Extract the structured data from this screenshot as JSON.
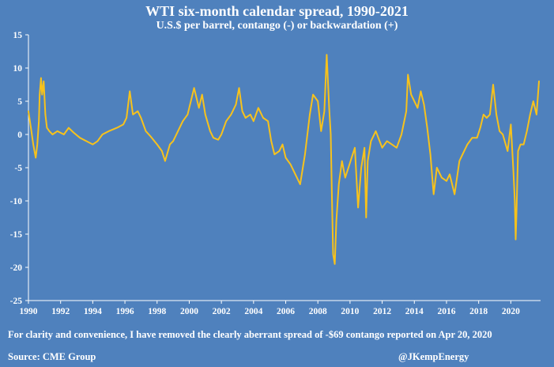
{
  "title": "WTI six-month calendar spread, 1990-2021",
  "subtitle": "U.S.$ per barrel, contango (-) or backwardation (+)",
  "note": "For clarity and convenience, I have removed the clearly aberrant spread of -$69 contango reported on Apr 20, 2020",
  "source": "Source: CME Group",
  "credit": "@JKempEnergy",
  "colors": {
    "background": "#4f81bd",
    "line": "#f7c21c",
    "text": "#ffffff"
  },
  "chart_data": {
    "type": "line",
    "title": "WTI six-month calendar spread, 1990-2021",
    "subtitle": "U.S.$ per barrel, contango (-) or backwardation (+)",
    "xlabel": "",
    "ylabel": "",
    "xlim": [
      1990,
      2021.85
    ],
    "ylim": [
      -25,
      15
    ],
    "yticks": [
      15,
      10,
      5,
      0,
      -5,
      -10,
      -15,
      -20,
      -25
    ],
    "xticks": [
      1990,
      1992,
      1994,
      1996,
      1998,
      2000,
      2002,
      2004,
      2006,
      2008,
      2010,
      2012,
      2014,
      2016,
      2018,
      2020
    ],
    "grid": false,
    "series": [
      {
        "x": [
          1990.0,
          1990.15,
          1990.3,
          1990.45,
          1990.55,
          1990.65,
          1990.7,
          1990.78,
          1990.85,
          1990.95,
          1991.05,
          1991.15,
          1991.3,
          1991.5,
          1991.8,
          1992.2,
          1992.5,
          1992.8,
          1993.2,
          1993.6,
          1994.0,
          1994.3,
          1994.6,
          1995.0,
          1995.5,
          1995.9,
          1996.1,
          1996.3,
          1996.5,
          1996.8,
          1997.0,
          1997.3,
          1997.6,
          1998.0,
          1998.3,
          1998.5,
          1998.8,
          1999.0,
          1999.3,
          1999.6,
          1999.9,
          2000.1,
          2000.3,
          2000.6,
          2000.8,
          2001.0,
          2001.3,
          2001.5,
          2001.8,
          2002.0,
          2002.3,
          2002.6,
          2002.9,
          2003.1,
          2003.3,
          2003.5,
          2003.8,
          2004.0,
          2004.3,
          2004.6,
          2004.9,
          2005.1,
          2005.3,
          2005.6,
          2005.8,
          2006.0,
          2006.3,
          2006.6,
          2006.9,
          2007.2,
          2007.5,
          2007.7,
          2008.0,
          2008.2,
          2008.4,
          2008.55,
          2008.7,
          2008.8,
          2008.88,
          2008.95,
          2009.05,
          2009.15,
          2009.3,
          2009.5,
          2009.7,
          2009.9,
          2010.1,
          2010.3,
          2010.5,
          2010.7,
          2010.9,
          2011.0,
          2011.1,
          2011.3,
          2011.6,
          2012.0,
          2012.3,
          2012.6,
          2012.9,
          2013.2,
          2013.5,
          2013.6,
          2013.8,
          2014.0,
          2014.2,
          2014.4,
          2014.6,
          2014.8,
          2015.0,
          2015.2,
          2015.4,
          2015.7,
          2016.0,
          2016.2,
          2016.5,
          2016.8,
          2017.0,
          2017.3,
          2017.6,
          2017.9,
          2018.1,
          2018.3,
          2018.5,
          2018.7,
          2018.9,
          2019.1,
          2019.3,
          2019.5,
          2019.8,
          2020.0,
          2020.15,
          2020.25,
          2020.3,
          2020.35,
          2020.45,
          2020.6,
          2020.8,
          2021.0,
          2021.2,
          2021.4,
          2021.6,
          2021.75
        ],
        "values": [
          3.5,
          1.0,
          -1.5,
          -3.5,
          -1.5,
          2.0,
          6.0,
          8.5,
          6.0,
          8.0,
          3.0,
          1.0,
          0.5,
          0.0,
          0.5,
          0.0,
          1.0,
          0.3,
          -0.5,
          -1.0,
          -1.5,
          -1.0,
          0.0,
          0.5,
          1.0,
          1.5,
          2.5,
          6.5,
          3.0,
          3.5,
          2.5,
          0.5,
          -0.3,
          -1.5,
          -2.5,
          -4.0,
          -1.5,
          -1.0,
          0.5,
          2.0,
          3.0,
          5.0,
          7.0,
          4.0,
          6.0,
          3.0,
          0.5,
          -0.5,
          -0.8,
          0.0,
          2.0,
          3.0,
          4.5,
          7.0,
          3.5,
          2.5,
          3.0,
          2.0,
          4.0,
          2.5,
          2.0,
          -1.0,
          -3.0,
          -2.5,
          -1.5,
          -3.5,
          -4.5,
          -6.0,
          -7.5,
          -3.0,
          3.0,
          6.0,
          5.0,
          0.5,
          3.5,
          12.0,
          4.0,
          0.0,
          -10.0,
          -18.0,
          -19.5,
          -13.0,
          -7.5,
          -4.0,
          -6.5,
          -5.0,
          -3.5,
          -2.0,
          -11.0,
          -5.0,
          -2.0,
          -12.5,
          -4.0,
          -1.0,
          0.5,
          -2.0,
          -1.0,
          -1.5,
          -2.0,
          0.0,
          3.5,
          9.0,
          6.0,
          5.0,
          4.0,
          6.5,
          4.5,
          1.0,
          -3.0,
          -9.0,
          -5.0,
          -6.5,
          -7.0,
          -6.0,
          -9.0,
          -4.0,
          -3.0,
          -1.5,
          -0.5,
          -0.5,
          1.0,
          3.0,
          2.5,
          3.0,
          7.5,
          3.0,
          0.5,
          0.0,
          -2.5,
          1.5,
          -5.0,
          -10.0,
          -15.8,
          -12.0,
          -2.5,
          -1.5,
          -1.5,
          0.5,
          3.0,
          5.0,
          3.0,
          8.0
        ]
      }
    ]
  }
}
